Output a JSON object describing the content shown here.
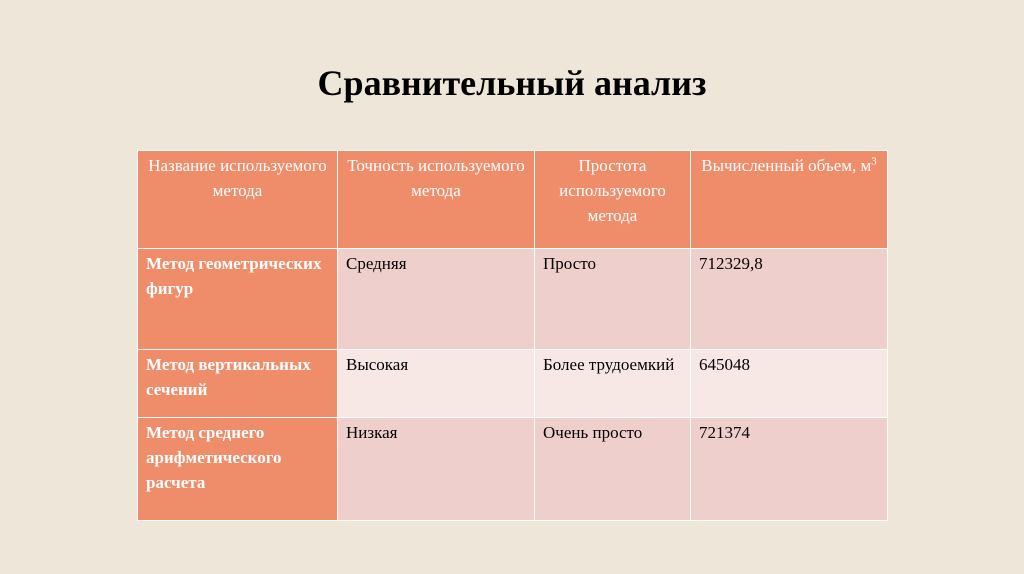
{
  "slide": {
    "title": "Сравнительный анализ"
  },
  "table": {
    "headers": {
      "method": "Название используемого метода",
      "accuracy": "Точность используемого метода",
      "simplicity": "Простота используемого метода",
      "volume": "Вычисленный объем, м",
      "volume_unit_exponent": "3"
    },
    "rows": [
      {
        "method": "Метод геометрических фигур",
        "accuracy": "Средняя",
        "simplicity": "Просто",
        "volume": "712329,8"
      },
      {
        "method": "Метод вертикальных сечений",
        "accuracy": "Высокая",
        "simplicity": "Более трудоемкий",
        "volume": "645048"
      },
      {
        "method": "Метод среднего арифметического расчета",
        "accuracy": "Низкая",
        "simplicity": "Очень просто",
        "volume": "721374"
      }
    ]
  }
}
